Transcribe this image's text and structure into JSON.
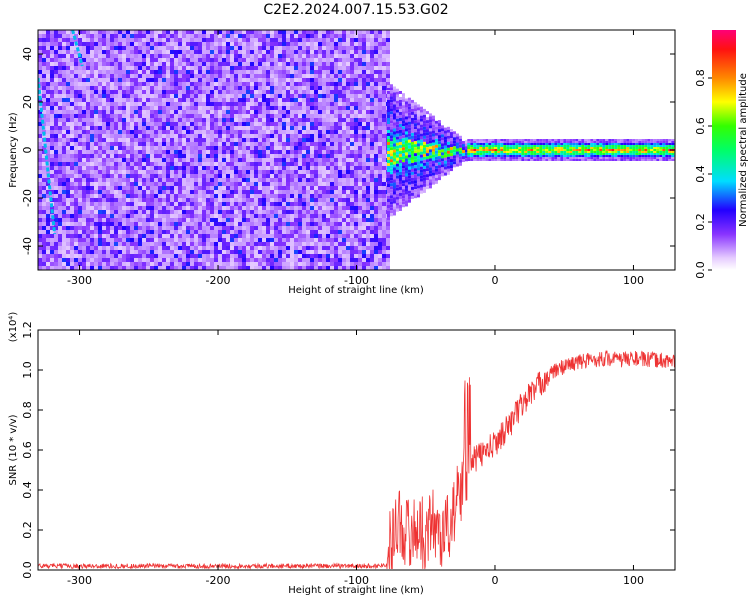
{
  "title": "C2E2.2024.007.15.53.G02",
  "colorbar": {
    "label": "Normalized spectral amplitude",
    "ticks": [
      "0.0",
      "0.2",
      "0.4",
      "0.6",
      "0.8"
    ],
    "tick_values": [
      0.0,
      0.2,
      0.4,
      0.6,
      0.8
    ],
    "range": [
      0,
      1
    ]
  },
  "chart_data": [
    {
      "type": "heatmap",
      "name": "spectrogram",
      "xlabel": "Height of straight line (km)",
      "ylabel": "Frequency (Hz)",
      "xlim": [
        -330,
        130
      ],
      "ylim": [
        -50,
        50
      ],
      "xticks": [
        -300,
        -200,
        -100,
        0,
        100
      ],
      "yticks": [
        -40,
        -20,
        0,
        20,
        40
      ],
      "grid": false,
      "regions": [
        {
          "x_range": [
            -330,
            -78
          ],
          "y_range": [
            -50,
            50
          ],
          "description": "broadband noise, amplitude 0.05-0.3"
        },
        {
          "x_range": [
            -80,
            -20
          ],
          "y_range": [
            -15,
            15
          ],
          "description": "signal acquisition, amplitude 0.3-0.8"
        },
        {
          "x_range": [
            -20,
            130
          ],
          "y_range": [
            -2,
            2
          ],
          "description": "strong carrier near 0 Hz, amplitude 0.5-1.0"
        }
      ],
      "spurious_lines": [
        {
          "x": [
            -330,
            -318
          ],
          "y": [
            30,
            -35
          ]
        },
        {
          "x": [
            -305,
            -298
          ],
          "y": [
            50,
            35
          ]
        }
      ]
    },
    {
      "type": "line",
      "name": "snr",
      "xlabel": "Height of straight line (km)",
      "ylabel": "SNR (10 * v/v)",
      "y_multiplier": "(x10⁴)",
      "xlim": [
        -330,
        130
      ],
      "ylim": [
        0.0,
        1.2
      ],
      "xticks": [
        -300,
        -200,
        -100,
        0,
        100
      ],
      "yticks": [
        0.0,
        0.2,
        0.4,
        0.6,
        0.8,
        1.0,
        1.2
      ],
      "ytick_labels": [
        "0.0",
        "0.2",
        "0.4",
        "0.6",
        "0.8",
        "1.0",
        "1.2"
      ],
      "grid": false,
      "series": [
        {
          "color": "#ee3333",
          "x": [
            -330,
            -300,
            -250,
            -200,
            -150,
            -100,
            -85,
            -78,
            -75,
            -70,
            -65,
            -60,
            -55,
            -50,
            -45,
            -40,
            -35,
            -30,
            -25,
            -22,
            -20,
            -18,
            -15,
            -10,
            -5,
            0,
            5,
            10,
            15,
            20,
            25,
            30,
            35,
            40,
            45,
            50,
            60,
            70,
            80,
            90,
            100,
            110,
            120,
            130
          ],
          "y": [
            0.02,
            0.02,
            0.02,
            0.02,
            0.02,
            0.02,
            0.02,
            0.03,
            0.15,
            0.25,
            0.2,
            0.18,
            0.22,
            0.16,
            0.25,
            0.18,
            0.2,
            0.28,
            0.4,
            0.45,
            0.4,
            0.48,
            0.55,
            0.58,
            0.6,
            0.63,
            0.68,
            0.72,
            0.78,
            0.83,
            0.88,
            0.91,
            0.95,
            0.98,
            1.0,
            1.02,
            1.04,
            1.05,
            1.06,
            1.05,
            1.06,
            1.05,
            1.05,
            1.04
          ]
        }
      ]
    }
  ]
}
